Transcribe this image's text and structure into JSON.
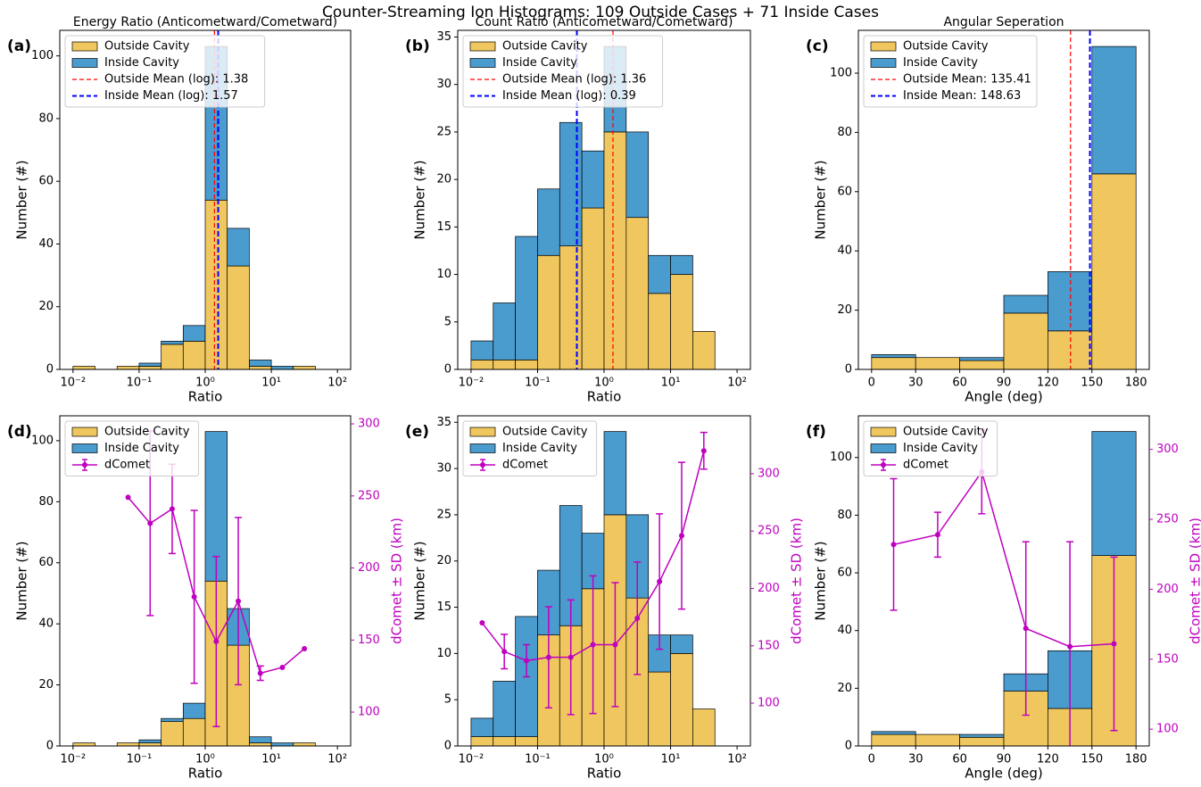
{
  "title": "Counter-Streaming Ion Histograms: 109 Outside Cases + 71 Inside Cases",
  "chart_data": [
    {
      "type": "histogram",
      "label": "(a)",
      "title": "Energy Ratio (Anticometward/Cometward)",
      "xlabel": "Ratio",
      "ylabel": "Number (#)",
      "xscale": "log",
      "bins": [
        0.01,
        0.02154,
        0.04642,
        0.1,
        0.2154,
        0.4642,
        1,
        2.154,
        4.642,
        10,
        21.54,
        46.42,
        100
      ],
      "xlim": [
        0.00631,
        158.5
      ],
      "xticks": [
        {
          "value": 0.01,
          "label": "10⁻²"
        },
        {
          "value": 0.1,
          "label": "10⁻¹"
        },
        {
          "value": 1,
          "label": "10⁰"
        },
        {
          "value": 10,
          "label": "10¹"
        },
        {
          "value": 100,
          "label": "10²"
        }
      ],
      "ylim": [
        0,
        108.15
      ],
      "yticks": [
        0,
        20,
        40,
        60,
        80,
        100
      ],
      "legend": "upper left",
      "series": [
        {
          "name": "Outside Cavity",
          "color": "#f0c75e",
          "values": [
            1,
            0,
            1,
            1,
            8,
            9,
            54,
            33,
            1,
            0,
            1,
            0
          ]
        },
        {
          "name": "Inside Cavity",
          "color": "#4a9bce",
          "values": [
            0,
            0,
            0,
            1,
            1,
            5,
            49,
            12,
            2,
            1,
            0,
            0
          ]
        }
      ],
      "mean_lines": [
        {
          "name": "Outside Mean (log): 1.38",
          "value": 1.38,
          "color": "#ff0000"
        },
        {
          "name": "Inside Mean (log): 1.57",
          "value": 1.57,
          "color": "#0000ff"
        }
      ]
    },
    {
      "type": "histogram",
      "label": "(b)",
      "title": "Count Ratio (Anticometward/Cometward)",
      "xlabel": "Ratio",
      "ylabel": "Number (#)",
      "xscale": "log",
      "bins": [
        0.01,
        0.02154,
        0.04642,
        0.1,
        0.2154,
        0.4642,
        1,
        2.154,
        4.642,
        10,
        21.54,
        46.42,
        100
      ],
      "xlim": [
        0.00631,
        158.5
      ],
      "xticks": [
        {
          "value": 0.01,
          "label": "10⁻²"
        },
        {
          "value": 0.1,
          "label": "10⁻¹"
        },
        {
          "value": 1,
          "label": "10⁰"
        },
        {
          "value": 10,
          "label": "10¹"
        },
        {
          "value": 100,
          "label": "10²"
        }
      ],
      "ylim": [
        0,
        35.7
      ],
      "yticks": [
        0,
        5,
        10,
        15,
        20,
        25,
        30,
        35
      ],
      "legend": "upper left",
      "series": [
        {
          "name": "Outside Cavity",
          "color": "#f0c75e",
          "values": [
            1,
            1,
            1,
            12,
            13,
            17,
            25,
            16,
            8,
            10,
            4,
            0
          ]
        },
        {
          "name": "Inside Cavity",
          "color": "#4a9bce",
          "values": [
            2,
            6,
            13,
            7,
            13,
            6,
            9,
            9,
            4,
            2,
            0,
            0
          ]
        }
      ],
      "mean_lines": [
        {
          "name": "Outside Mean (log): 1.36",
          "value": 1.36,
          "color": "#ff0000"
        },
        {
          "name": "Inside Mean (log): 0.39",
          "value": 0.39,
          "color": "#0000ff"
        }
      ]
    },
    {
      "type": "histogram",
      "label": "(c)",
      "title": "Angular Seperation",
      "xlabel": "Angle (deg)",
      "ylabel": "Number (#)",
      "xscale": "linear",
      "bins": [
        0,
        30,
        60,
        90,
        120,
        150,
        180
      ],
      "xlim": [
        -9,
        189
      ],
      "xticks": [
        0,
        30,
        60,
        90,
        120,
        150,
        180
      ],
      "ylim": [
        0,
        114.45
      ],
      "yticks": [
        0,
        20,
        40,
        60,
        80,
        100
      ],
      "legend": "upper left",
      "series": [
        {
          "name": "Outside Cavity",
          "color": "#f0c75e",
          "values": [
            4,
            4,
            3,
            19,
            13,
            66
          ]
        },
        {
          "name": "Inside Cavity",
          "color": "#4a9bce",
          "values": [
            1,
            0,
            1,
            6,
            20,
            43
          ]
        }
      ],
      "mean_lines": [
        {
          "name": "Outside Mean: 135.41",
          "value": 135.41,
          "color": "#ff0000"
        },
        {
          "name": "Inside Mean: 148.63",
          "value": 148.63,
          "color": "#0000ff"
        }
      ]
    },
    {
      "type": "histogram",
      "label": "(d)",
      "xlabel": "Ratio",
      "ylabel": "Number (#)",
      "y2label": "dComet ± SD (km)",
      "xscale": "log",
      "bins": [
        0.01,
        0.02154,
        0.04642,
        0.1,
        0.2154,
        0.4642,
        1,
        2.154,
        4.642,
        10,
        21.54,
        46.42,
        100
      ],
      "xlim": [
        0.00631,
        158.5
      ],
      "xticks": [
        {
          "value": 0.01,
          "label": "10⁻²"
        },
        {
          "value": 0.1,
          "label": "10⁻¹"
        },
        {
          "value": 1,
          "label": "10⁰"
        },
        {
          "value": 10,
          "label": "10¹"
        },
        {
          "value": 100,
          "label": "10²"
        }
      ],
      "ylim": [
        0,
        108.15
      ],
      "yticks": [
        0,
        20,
        40,
        60,
        80,
        100
      ],
      "y2lim": [
        76.5,
        305.6
      ],
      "y2ticks": [
        100,
        150,
        200,
        250,
        300
      ],
      "legend": "upper left",
      "series": [
        {
          "name": "Outside Cavity",
          "color": "#f0c75e",
          "values": [
            1,
            0,
            1,
            1,
            8,
            9,
            54,
            33,
            1,
            0,
            1,
            0
          ]
        },
        {
          "name": "Inside Cavity",
          "color": "#4a9bce",
          "values": [
            0,
            0,
            0,
            1,
            1,
            5,
            49,
            12,
            2,
            1,
            0,
            0
          ]
        }
      ],
      "line": {
        "name": "dComet",
        "color": "#bf00bf",
        "axis": "y2",
        "x": [
          0.06813,
          0.1468,
          0.3162,
          0.6813,
          1.468,
          3.162,
          6.813,
          14.68,
          31.62
        ],
        "values": [
          249,
          231,
          241,
          180,
          149,
          177,
          127,
          131,
          144
        ],
        "errors": [
          0,
          64,
          31,
          60,
          59,
          58,
          5,
          0,
          0
        ]
      }
    },
    {
      "type": "histogram",
      "label": "(e)",
      "xlabel": "Ratio",
      "ylabel": "Number (#)",
      "y2label": "dComet ± SD (km)",
      "xscale": "log",
      "bins": [
        0.01,
        0.02154,
        0.04642,
        0.1,
        0.2154,
        0.4642,
        1,
        2.154,
        4.642,
        10,
        21.54,
        46.42,
        100
      ],
      "xlim": [
        0.00631,
        158.5
      ],
      "xticks": [
        {
          "value": 0.01,
          "label": "10⁻²"
        },
        {
          "value": 0.1,
          "label": "10⁻¹"
        },
        {
          "value": 1,
          "label": "10⁰"
        },
        {
          "value": 10,
          "label": "10¹"
        },
        {
          "value": 100,
          "label": "10²"
        }
      ],
      "ylim": [
        0,
        35.7
      ],
      "yticks": [
        0,
        5,
        10,
        15,
        20,
        25,
        30,
        35
      ],
      "y2lim": [
        62.7,
        350.5
      ],
      "y2ticks": [
        100,
        150,
        200,
        250,
        300
      ],
      "legend": "upper left",
      "series": [
        {
          "name": "Outside Cavity",
          "color": "#f0c75e",
          "values": [
            1,
            1,
            1,
            12,
            13,
            17,
            25,
            16,
            8,
            10,
            4,
            0
          ]
        },
        {
          "name": "Inside Cavity",
          "color": "#4a9bce",
          "values": [
            2,
            6,
            13,
            7,
            13,
            6,
            9,
            9,
            4,
            2,
            0,
            0
          ]
        }
      ],
      "line": {
        "name": "dComet",
        "color": "#bf00bf",
        "axis": "y2",
        "x": [
          0.01468,
          0.03162,
          0.06813,
          0.1468,
          0.3162,
          0.6813,
          1.468,
          3.162,
          6.813,
          14.68,
          31.62
        ],
        "values": [
          170,
          145,
          137,
          140,
          140,
          151,
          151,
          174,
          206,
          246,
          320
        ],
        "errors": [
          0,
          15,
          14,
          44,
          50,
          60,
          54,
          49,
          59,
          64,
          16
        ]
      }
    },
    {
      "type": "histogram",
      "label": "(f)",
      "xlabel": "Angle (deg)",
      "ylabel": "Number (#)",
      "y2label": "dComet ± SD (km)",
      "xscale": "linear",
      "bins": [
        0,
        30,
        60,
        90,
        120,
        150,
        180
      ],
      "xlim": [
        -9,
        189
      ],
      "xticks": [
        0,
        30,
        60,
        90,
        120,
        150,
        180
      ],
      "ylim": [
        0,
        114.45
      ],
      "yticks": [
        0,
        20,
        40,
        60,
        80,
        100
      ],
      "y2lim": [
        88,
        324
      ],
      "y2ticks": [
        100,
        150,
        200,
        250,
        300
      ],
      "legend": "upper left",
      "series": [
        {
          "name": "Outside Cavity",
          "color": "#f0c75e",
          "values": [
            4,
            4,
            3,
            19,
            13,
            66
          ]
        },
        {
          "name": "Inside Cavity",
          "color": "#4a9bce",
          "values": [
            1,
            0,
            1,
            6,
            20,
            43
          ]
        }
      ],
      "line": {
        "name": "dComet",
        "color": "#bf00bf",
        "axis": "y2",
        "x": [
          15,
          45,
          75,
          105,
          135,
          165
        ],
        "values": [
          232,
          239,
          284,
          172,
          159,
          161
        ],
        "errors": [
          47,
          16,
          30,
          62,
          75,
          62
        ]
      }
    }
  ]
}
